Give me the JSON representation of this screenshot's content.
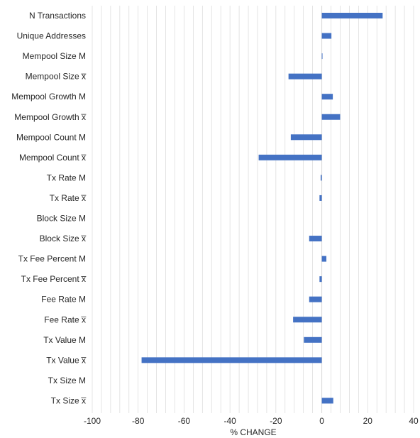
{
  "chart_data": {
    "type": "bar",
    "orientation": "horizontal",
    "categories": [
      "N Transactions",
      "Unique Addresses",
      "Mempool Size  M",
      "Mempool Size  x̅",
      "Mempool Growth  M",
      "Mempool Growth  x̅",
      "Mempool Count  M",
      "Mempool Count  x̅",
      "Tx Rate  M",
      "Tx Rate  x̅",
      "Block Size M",
      "Block Size x̅",
      "Tx Fee Percent  M",
      "Tx Fee Percent  x̅",
      "Fee Rate  M",
      "Fee Rate  x̅",
      "Tx Value  M",
      "Tx Value  x̅",
      "Tx Size  M",
      "Tx Size  x̅"
    ],
    "values": [
      26.5,
      4.2,
      0.3,
      -14.5,
      4.8,
      8.0,
      -13.5,
      -27.5,
      -0.5,
      -1.0,
      0.0,
      -5.5,
      2.0,
      -1.0,
      -5.5,
      -12.5,
      -7.8,
      -78.5,
      0.0,
      5.0
    ],
    "xlabel": "% CHANGE",
    "xlim": [
      -100,
      40
    ],
    "xticks": [
      -100,
      -80,
      -60,
      -40,
      -20,
      0,
      20,
      40
    ],
    "xtick_labels": [
      "-100",
      "-80",
      "-60",
      "-40",
      "-20",
      "0",
      "20",
      "40"
    ],
    "grid": "vertical",
    "legend": "none",
    "bar_color": "#4472c4",
    "grid_color": "#d9d9d9",
    "zero_line_color": "#d9d9d9"
  }
}
